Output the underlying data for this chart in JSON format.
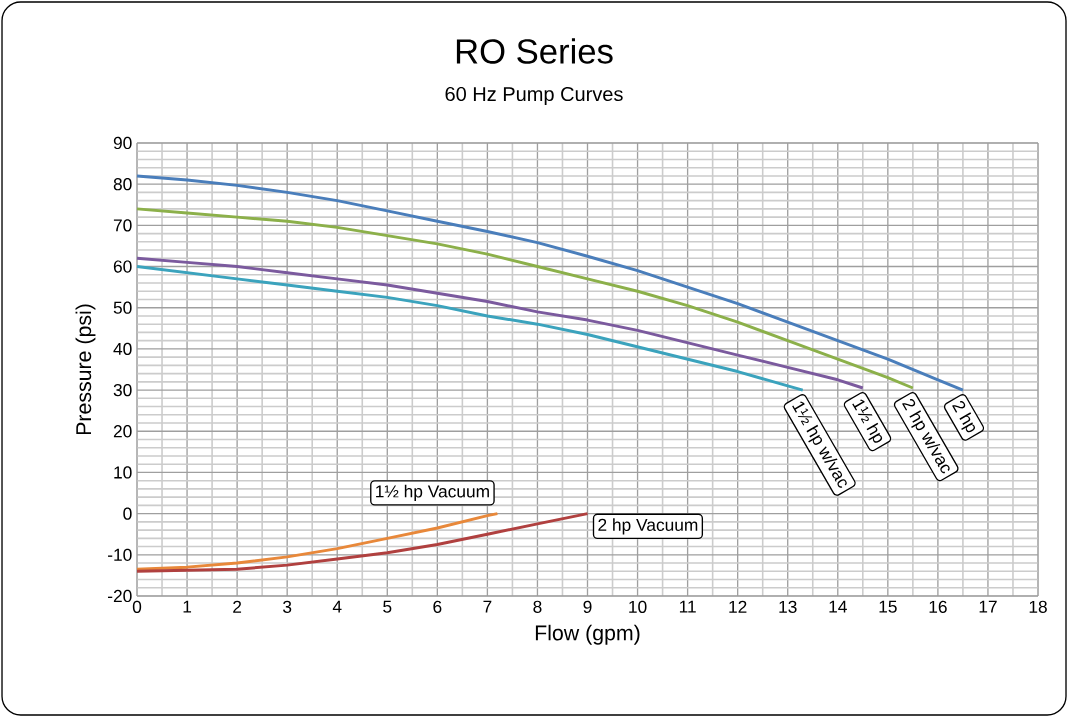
{
  "chart_data": {
    "type": "line",
    "title": "RO Series",
    "subtitle": "60 Hz Pump Curves",
    "xlabel": "Flow (gpm)",
    "ylabel": "Pressure (psi)",
    "xlim": [
      0,
      18
    ],
    "ylim": [
      -20,
      90
    ],
    "xticks": [
      0,
      1,
      2,
      3,
      4,
      5,
      6,
      7,
      8,
      9,
      10,
      11,
      12,
      13,
      14,
      15,
      16,
      17,
      18
    ],
    "yticks": [
      -20,
      -10,
      0,
      10,
      20,
      30,
      40,
      50,
      60,
      70,
      80,
      90
    ],
    "grid": true,
    "legend": false,
    "marker": "none",
    "line_style": "solid",
    "series": [
      {
        "name": "2 hp",
        "color": "#4a7ebb",
        "x": [
          0,
          1,
          2,
          3,
          4,
          5,
          6,
          7,
          8,
          9,
          10,
          11,
          12,
          13,
          14,
          15,
          16,
          16.5
        ],
        "values": [
          82,
          81,
          79.7,
          78,
          76,
          73.5,
          71,
          68.5,
          65.8,
          62.5,
          59,
          55,
          51,
          46.5,
          42,
          37.5,
          32.5,
          30
        ]
      },
      {
        "name": "2 hp w/vac",
        "color": "#8cb04a",
        "x": [
          0,
          1,
          2,
          3,
          4,
          5,
          6,
          7,
          8,
          9,
          10,
          11,
          12,
          13,
          14,
          15,
          15.5
        ],
        "values": [
          74,
          73,
          72,
          71,
          69.5,
          67.5,
          65.5,
          63,
          60,
          57,
          54,
          50.5,
          46.5,
          42,
          37.5,
          33,
          30.5
        ]
      },
      {
        "name": "1½ hp",
        "color": "#7b5a9e",
        "x": [
          0,
          1,
          2,
          3,
          4,
          5,
          6,
          7,
          8,
          9,
          10,
          11,
          12,
          13,
          14,
          14.5
        ],
        "values": [
          62,
          61,
          60,
          58.5,
          57,
          55.5,
          53.5,
          51.5,
          49,
          47,
          44.5,
          41.5,
          38.5,
          35.5,
          32.5,
          30.5
        ]
      },
      {
        "name": "1½ hp w/vac",
        "color": "#3ba3bd",
        "x": [
          0,
          1,
          2,
          3,
          4,
          5,
          6,
          7,
          8,
          9,
          10,
          11,
          12,
          13,
          13.3
        ],
        "values": [
          60,
          58.5,
          57,
          55.5,
          54,
          52.5,
          50.5,
          48,
          46,
          43.5,
          40.5,
          37.5,
          34.5,
          31,
          30
        ]
      },
      {
        "name": "1½ hp Vacuum",
        "color": "#e8883a",
        "x": [
          0,
          1,
          2,
          3,
          4,
          5,
          6,
          7,
          7.2
        ],
        "values": [
          -13.5,
          -13,
          -12,
          -10.5,
          -8.5,
          -6,
          -3.5,
          -0.5,
          0
        ]
      },
      {
        "name": "2 hp Vacuum",
        "color": "#b0403f",
        "x": [
          0,
          2,
          3,
          4,
          5,
          6,
          7,
          8,
          9
        ],
        "values": [
          -14,
          -13.5,
          -12.5,
          -11,
          -9.5,
          -7.5,
          -5,
          -2.5,
          0
        ]
      }
    ]
  }
}
